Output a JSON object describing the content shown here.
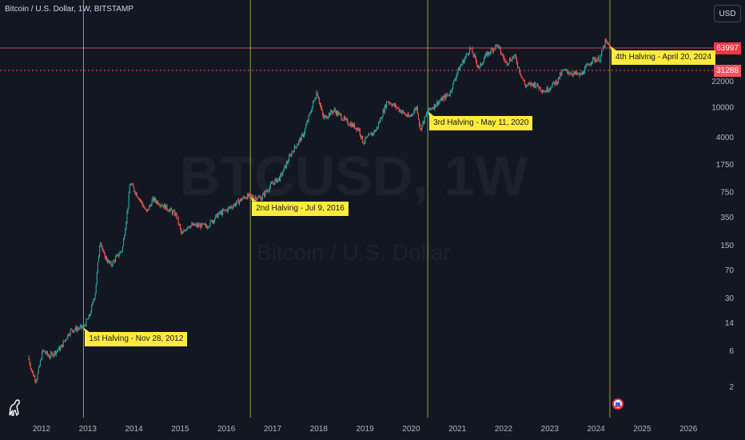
{
  "header": {
    "symbol_title": "Bitcoin / U.S. Dollar, 1W, BITSTAMP",
    "currency_button": "USD"
  },
  "watermark": {
    "ticker": "BTCUSD, 1W",
    "name": "Bitcoin / U.S. Dollar"
  },
  "price_tags": {
    "high": "63997",
    "low": "31288"
  },
  "colors": {
    "background": "#131722",
    "up": "#26a69a",
    "down": "#ef5350",
    "halving_line": "#cddc39",
    "halving_label_bg": "#ffeb3b",
    "hline_solid": "#b5484f",
    "hline_dotted": "#f7525f",
    "axis_text": "#b2b5be"
  },
  "icons": {
    "logo": "tradingview-dino-icon",
    "event_flag": "us-flag-icon"
  },
  "chart_data": {
    "type": "candlestick",
    "title": "Bitcoin / U.S. Dollar, 1W, BITSTAMP",
    "y_scale": "log",
    "x_tick_labels": [
      "2012",
      "2013",
      "2014",
      "2015",
      "2016",
      "2017",
      "2018",
      "2019",
      "2020",
      "2021",
      "2022",
      "2023",
      "2024",
      "2025",
      "2026"
    ],
    "y_tick_labels": [
      "22000",
      "10000",
      "4000",
      "1750",
      "750",
      "350",
      "150",
      "70",
      "30",
      "14",
      "6",
      "2"
    ],
    "horizontal_lines": [
      {
        "value": 63997,
        "style": "solid"
      },
      {
        "value": 31288,
        "style": "dotted"
      }
    ],
    "halvings": [
      {
        "label": "1st Halving - Nov 28, 2012",
        "date": "2012-11-28",
        "price": 12
      },
      {
        "label": "2nd Halving - Jul 9, 2016",
        "date": "2016-07-09",
        "price": 650
      },
      {
        "label": "3rd Halving - May 11, 2020",
        "date": "2020-05-11",
        "price": 8700
      },
      {
        "label": "4th Halving - April 20, 2024",
        "date": "2024-04-20",
        "price": 64000
      }
    ],
    "series": [
      {
        "price_path": [
          [
            "2011-09-15",
            5
          ],
          [
            "2011-10-20",
            3
          ],
          [
            "2011-11-20",
            2.4
          ],
          [
            "2012-01-10",
            6
          ],
          [
            "2012-03-01",
            5
          ],
          [
            "2012-06-01",
            6.5
          ],
          [
            "2012-08-15",
            11
          ],
          [
            "2012-11-28",
            12.2
          ],
          [
            "2013-01-15",
            17
          ],
          [
            "2013-03-01",
            35
          ],
          [
            "2013-04-09",
            180
          ],
          [
            "2013-05-01",
            115
          ],
          [
            "2013-07-01",
            80
          ],
          [
            "2013-10-01",
            130
          ],
          [
            "2013-11-15",
            500
          ],
          [
            "2013-12-01",
            1000
          ],
          [
            "2014-01-01",
            800
          ],
          [
            "2014-02-15",
            600
          ],
          [
            "2014-04-10",
            400
          ],
          [
            "2014-06-01",
            600
          ],
          [
            "2014-09-01",
            480
          ],
          [
            "2014-12-01",
            370
          ],
          [
            "2015-01-14",
            200
          ],
          [
            "2015-03-01",
            270
          ],
          [
            "2015-08-01",
            265
          ],
          [
            "2015-11-01",
            380
          ],
          [
            "2016-01-01",
            430
          ],
          [
            "2016-06-01",
            650
          ],
          [
            "2016-07-09",
            650
          ],
          [
            "2016-10-01",
            620
          ],
          [
            "2017-01-01",
            980
          ],
          [
            "2017-03-01",
            1150
          ],
          [
            "2017-06-01",
            2500
          ],
          [
            "2017-09-01",
            4300
          ],
          [
            "2017-12-17",
            16000
          ],
          [
            "2018-02-06",
            7000
          ],
          [
            "2018-05-01",
            9000
          ],
          [
            "2018-08-01",
            6500
          ],
          [
            "2018-11-15",
            5000
          ],
          [
            "2018-12-15",
            3400
          ],
          [
            "2019-04-01",
            5000
          ],
          [
            "2019-06-26",
            12000
          ],
          [
            "2019-09-01",
            10000
          ],
          [
            "2019-12-15",
            7200
          ],
          [
            "2020-02-15",
            10000
          ],
          [
            "2020-03-12",
            5000
          ],
          [
            "2020-05-11",
            8700
          ],
          [
            "2020-08-01",
            11500
          ],
          [
            "2020-11-01",
            15000
          ],
          [
            "2021-01-01",
            29000
          ],
          [
            "2021-04-13",
            60000
          ],
          [
            "2021-06-22",
            32000
          ],
          [
            "2021-08-01",
            45000
          ],
          [
            "2021-11-10",
            66000
          ],
          [
            "2022-01-20",
            38000
          ],
          [
            "2022-03-28",
            47000
          ],
          [
            "2022-06-18",
            19000
          ],
          [
            "2022-09-01",
            20000
          ],
          [
            "2022-11-21",
            16000
          ],
          [
            "2023-03-01",
            22000
          ],
          [
            "2023-04-15",
            30000
          ],
          [
            "2023-09-01",
            26000
          ],
          [
            "2023-12-01",
            42000
          ],
          [
            "2024-02-01",
            43000
          ],
          [
            "2024-03-14",
            72000
          ],
          [
            "2024-04-01",
            66000
          ],
          [
            "2024-04-25",
            64000
          ]
        ]
      }
    ]
  }
}
